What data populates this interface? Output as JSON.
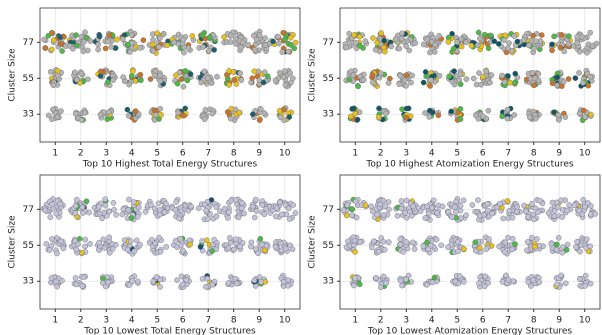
{
  "chart_data": [
    {
      "type": "scatter",
      "x_label": "Top 10 Highest Total Energy Structures",
      "y_label": "Cluster Size",
      "xlim": [
        0.4,
        10.6
      ],
      "xticks": [
        1,
        2,
        3,
        4,
        5,
        6,
        7,
        8,
        9,
        10
      ],
      "ylim": [
        16,
        98
      ],
      "yticks": [
        33,
        55,
        77
      ],
      "grid": true,
      "colors": [
        "#b4b4b4",
        "#e8c21a",
        "#4cb848",
        "#c8742a",
        "#1d5e6e"
      ]
    },
    {
      "type": "scatter",
      "x_label": "Top 10 Highest Atomization Energy Structures",
      "y_label": "Cluster Size",
      "xlim": [
        0.4,
        10.6
      ],
      "xticks": [
        1,
        2,
        3,
        4,
        5,
        6,
        7,
        8,
        9,
        10
      ],
      "ylim": [
        16,
        98
      ],
      "yticks": [
        33,
        55,
        77
      ],
      "grid": true,
      "colors": [
        "#b4b4b4",
        "#0f5566",
        "#e8c21a",
        "#4cb848",
        "#c8742a"
      ]
    },
    {
      "type": "scatter",
      "x_label": "Top 10 Lowest Total Energy Structures",
      "y_label": "Cluster Size",
      "xlim": [
        0.4,
        10.6
      ],
      "xticks": [
        1,
        2,
        3,
        4,
        5,
        6,
        7,
        8,
        9,
        10
      ],
      "ylim": [
        16,
        98
      ],
      "yticks": [
        33,
        55,
        77
      ],
      "grid": true,
      "colors": [
        "#c2c2d8",
        "#4cb848",
        "#1d4e6e",
        "#e8c21a"
      ]
    },
    {
      "type": "scatter",
      "x_label": "Top 10 Lowest Atomization Energy Structures",
      "y_label": "Cluster Size",
      "xlim": [
        0.4,
        10.6
      ],
      "xticks": [
        1,
        2,
        3,
        4,
        5,
        6,
        7,
        8,
        9,
        10
      ],
      "ylim": [
        16,
        98
      ],
      "yticks": [
        33,
        55,
        77
      ],
      "grid": true,
      "colors": [
        "#c2c2d8",
        "#4cb848",
        "#e8c21a"
      ]
    }
  ]
}
